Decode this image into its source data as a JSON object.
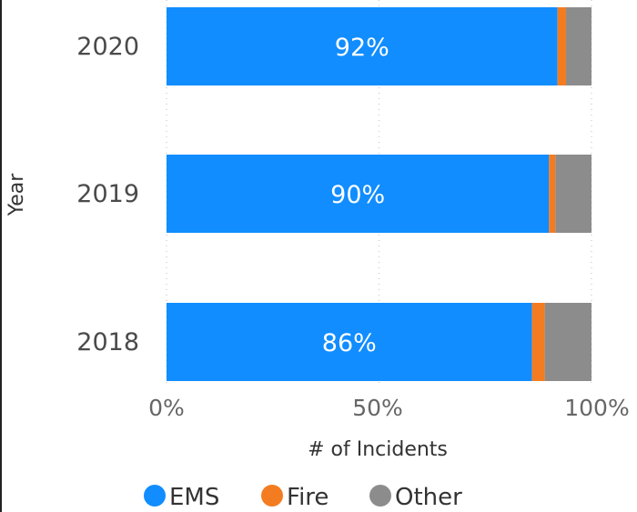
{
  "chart_data": {
    "type": "bar",
    "orientation": "horizontal",
    "stacked": "percent",
    "categories": [
      "2020",
      "2019",
      "2018"
    ],
    "series": [
      {
        "name": "EMS",
        "color": "#118dff",
        "values": [
          92,
          90,
          86
        ]
      },
      {
        "name": "Fire",
        "color": "#f47c20",
        "values": [
          2,
          1.5,
          3
        ]
      },
      {
        "name": "Other",
        "color": "#8c8c8c",
        "values": [
          6,
          8.5,
          11
        ]
      }
    ],
    "data_labels": [
      "92%",
      "90%",
      "86%"
    ],
    "x_ticks": [
      "0%",
      "50%",
      "100%"
    ],
    "xlabel": "# of Incidents",
    "ylabel": "Year",
    "xlim": [
      0,
      100
    ],
    "grid": "vertical dotted",
    "legend_position": "bottom"
  }
}
